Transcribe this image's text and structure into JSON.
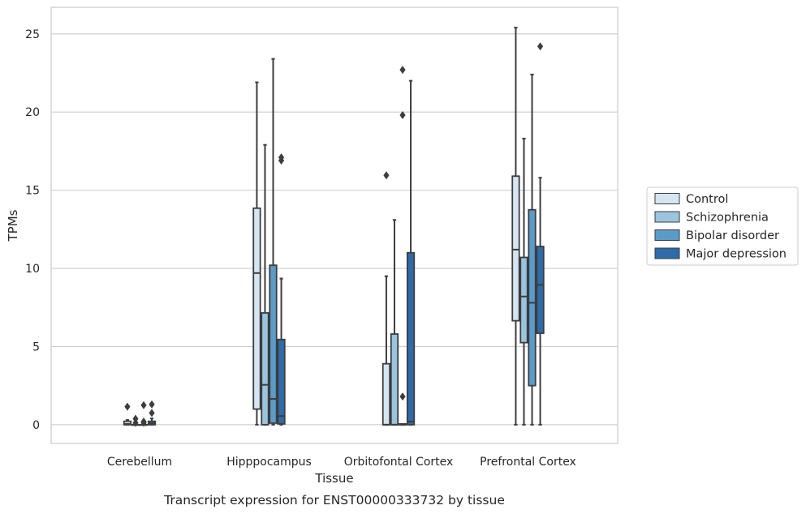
{
  "chart_data": {
    "type": "box",
    "caption": "Transcript expression for ENST00000333732 by tissue",
    "xlabel": "Tissue",
    "ylabel": "TPMs",
    "ylim": [
      -1.2,
      26.7
    ],
    "yticks": [
      "0",
      "5",
      "10",
      "15",
      "20",
      "25"
    ],
    "grid": "horizontal",
    "legend_position": "right",
    "categories": [
      "Cerebellum",
      "Hipppocampus",
      "Orbitofontal Cortex",
      "Prefrontal Cortex"
    ],
    "series": [
      {
        "name": "Control",
        "color": "#d6e5f2",
        "boxes": [
          {
            "min": 0,
            "q1": 0,
            "median": 0.05,
            "q3": 0.22,
            "max": 0.3,
            "outliers": [
              1.15
            ]
          },
          {
            "min": 0,
            "q1": 1.0,
            "median": 9.7,
            "q3": 13.85,
            "max": 21.9,
            "outliers": []
          },
          {
            "min": 0,
            "q1": 0,
            "median": 0,
            "q3": 3.9,
            "max": 9.5,
            "outliers": [
              15.95
            ]
          },
          {
            "min": 0,
            "q1": 6.65,
            "median": 11.2,
            "q3": 15.9,
            "max": 25.4,
            "outliers": []
          }
        ]
      },
      {
        "name": "Schizophrenia",
        "color": "#9bc4de",
        "boxes": [
          {
            "min": 0,
            "q1": 0,
            "median": 0,
            "q3": 0,
            "max": 0.1,
            "outliers": [
              0.38,
              0.12
            ]
          },
          {
            "min": 0,
            "q1": 0,
            "median": 2.55,
            "q3": 7.15,
            "max": 17.9,
            "outliers": []
          },
          {
            "min": 0,
            "q1": 0,
            "median": 0,
            "q3": 5.8,
            "max": 13.1,
            "outliers": []
          },
          {
            "min": 0,
            "q1": 5.25,
            "median": 8.2,
            "q3": 10.7,
            "max": 18.3,
            "outliers": []
          }
        ]
      },
      {
        "name": "Bipolar disorder",
        "color": "#5b9bc8",
        "boxes": [
          {
            "min": 0,
            "q1": 0,
            "median": 0,
            "q3": 0,
            "max": 0.05,
            "outliers": [
              1.25,
              0.2,
              0.12
            ]
          },
          {
            "min": 0,
            "q1": 0.1,
            "median": 1.65,
            "q3": 10.2,
            "max": 23.4,
            "outliers": []
          },
          {
            "min": 0,
            "q1": 0,
            "median": 0,
            "q3": 0.05,
            "max": 0.05,
            "outliers": [
              1.8,
              19.8,
              22.7
            ]
          },
          {
            "min": 0,
            "q1": 2.5,
            "median": 7.8,
            "q3": 13.75,
            "max": 22.4,
            "outliers": []
          }
        ]
      },
      {
        "name": "Major depression",
        "color": "#2e6ba8",
        "boxes": [
          {
            "min": 0,
            "q1": 0,
            "median": 0.1,
            "q3": 0.22,
            "max": 0.4,
            "outliers": [
              1.3,
              0.75
            ]
          },
          {
            "min": 0,
            "q1": 0.05,
            "median": 0.55,
            "q3": 5.45,
            "max": 9.35,
            "outliers": [
              16.9,
              17.1
            ]
          },
          {
            "min": 0,
            "q1": 0,
            "median": 0.2,
            "q3": 11.0,
            "max": 22.0,
            "outliers": []
          },
          {
            "min": 0,
            "q1": 5.85,
            "median": 8.95,
            "q3": 11.4,
            "max": 15.8,
            "outliers": [
              24.2
            ]
          }
        ]
      }
    ]
  }
}
